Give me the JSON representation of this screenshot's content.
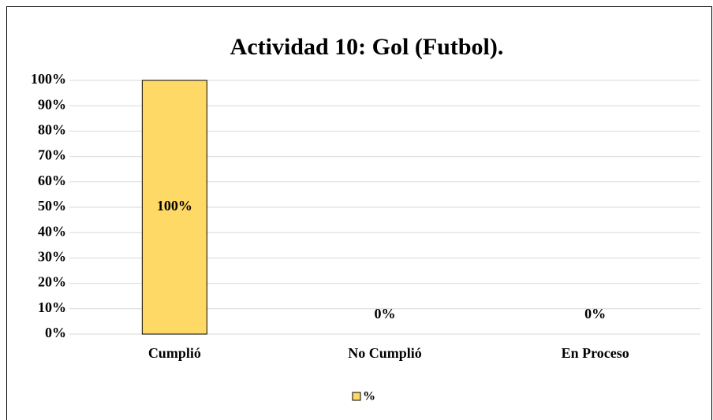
{
  "chart_data": {
    "type": "bar",
    "title": "Actividad 10: Gol (Futbol).",
    "categories": [
      "Cumplió",
      "No Cumplió",
      "En Proceso"
    ],
    "series": [
      {
        "name": "%",
        "color": "#ffd966",
        "values": [
          100,
          0,
          0
        ],
        "value_labels": [
          "100%",
          "0%",
          "0%"
        ]
      }
    ],
    "ylim": [
      0,
      100
    ],
    "yticks": [
      {
        "value": 0,
        "label": "0%"
      },
      {
        "value": 10,
        "label": "10%"
      },
      {
        "value": 20,
        "label": "20%"
      },
      {
        "value": 30,
        "label": "30%"
      },
      {
        "value": 40,
        "label": "40%"
      },
      {
        "value": 50,
        "label": "50%"
      },
      {
        "value": 60,
        "label": "60%"
      },
      {
        "value": 70,
        "label": "70%"
      },
      {
        "value": 80,
        "label": "80%"
      },
      {
        "value": 90,
        "label": "90%"
      },
      {
        "value": 100,
        "label": "100%"
      }
    ],
    "grid": true,
    "legend": "bottom"
  }
}
